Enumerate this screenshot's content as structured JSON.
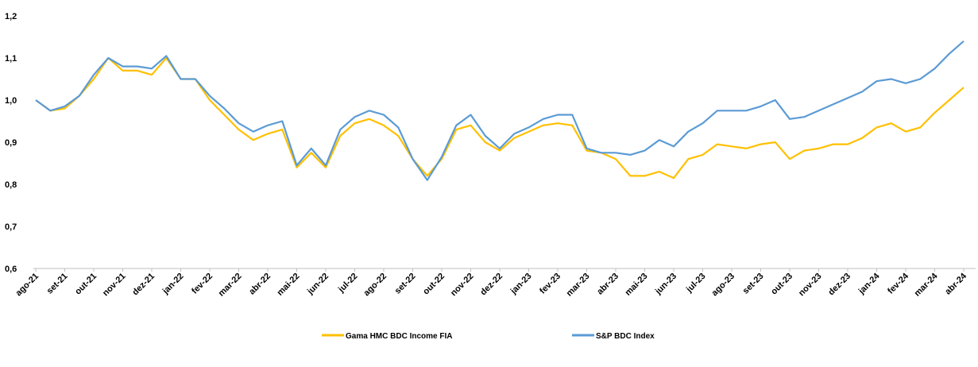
{
  "chart_data": {
    "type": "line",
    "categories": [
      "ago-21",
      null,
      "set-21",
      null,
      "out-21",
      null,
      "nov-21",
      null,
      "dez-21",
      null,
      "jan-22",
      null,
      "fev-22",
      null,
      "mar-22",
      null,
      "abr-22",
      null,
      "mai-22",
      null,
      "jun-22",
      null,
      "jul-22",
      null,
      "ago-22",
      null,
      "set-22",
      null,
      "out-22",
      null,
      "nov-22",
      null,
      "dez-22",
      null,
      "jan-23",
      null,
      "fev-23",
      null,
      "mar-23",
      null,
      "abr-23",
      null,
      "mai-23",
      null,
      "jun-23",
      null,
      "jul-23",
      null,
      "ago-23",
      null,
      "set-23",
      null,
      "out-23",
      null,
      "nov-23",
      null,
      "dez-23",
      null,
      "jan-24",
      null,
      "fev-24",
      null,
      "mar-24",
      null,
      "abr-24"
    ],
    "series": [
      {
        "name": "Gama HMC BDC Income FIA",
        "color": "#ffc000",
        "values": [
          1.0,
          0.975,
          0.98,
          1.01,
          1.05,
          1.1,
          1.07,
          1.07,
          1.06,
          1.1,
          1.05,
          1.05,
          1.0,
          0.965,
          0.93,
          0.905,
          0.92,
          0.93,
          0.84,
          0.875,
          0.84,
          0.915,
          0.945,
          0.955,
          0.94,
          0.915,
          0.86,
          0.82,
          0.86,
          0.93,
          0.94,
          0.9,
          0.88,
          0.91,
          0.925,
          0.94,
          0.945,
          0.94,
          0.88,
          0.875,
          0.86,
          0.82,
          0.82,
          0.83,
          0.815,
          0.86,
          0.87,
          0.895,
          0.89,
          0.885,
          0.895,
          0.9,
          0.86,
          0.88,
          0.885,
          0.895,
          0.895,
          0.91,
          0.935,
          0.945,
          0.925,
          0.935,
          0.97,
          1.0,
          1.03
        ]
      },
      {
        "name": "S&P BDC Index",
        "color": "#5b9bd5",
        "values": [
          1.0,
          0.975,
          0.985,
          1.01,
          1.06,
          1.1,
          1.08,
          1.08,
          1.075,
          1.105,
          1.05,
          1.05,
          1.01,
          0.98,
          0.945,
          0.925,
          0.94,
          0.95,
          0.845,
          0.885,
          0.845,
          0.93,
          0.96,
          0.975,
          0.965,
          0.935,
          0.86,
          0.81,
          0.865,
          0.94,
          0.965,
          0.915,
          0.885,
          0.92,
          0.935,
          0.955,
          0.965,
          0.965,
          0.885,
          0.875,
          0.875,
          0.87,
          0.88,
          0.905,
          0.89,
          0.925,
          0.945,
          0.975,
          0.975,
          0.975,
          0.985,
          1.0,
          0.955,
          0.96,
          0.975,
          0.99,
          1.005,
          1.02,
          1.045,
          1.05,
          1.04,
          1.05,
          1.075,
          1.11,
          1.14
        ]
      }
    ],
    "ylim": [
      0.6,
      1.2
    ],
    "yticks": [
      {
        "value": 0.6,
        "label": "0,6"
      },
      {
        "value": 0.7,
        "label": "0,7"
      },
      {
        "value": 0.8,
        "label": "0,8"
      },
      {
        "value": 0.9,
        "label": "0,9"
      },
      {
        "value": 1.0,
        "label": "1,0"
      },
      {
        "value": 1.1,
        "label": "1,1"
      },
      {
        "value": 1.2,
        "label": "1,2"
      }
    ],
    "grid": false,
    "legend": "bottom"
  }
}
